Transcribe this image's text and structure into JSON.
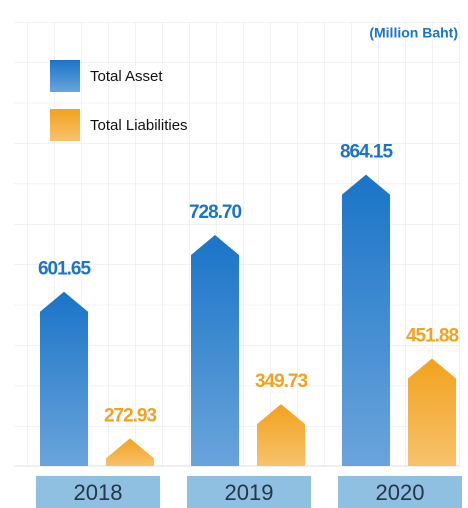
{
  "chart_data": {
    "type": "bar",
    "unit_label": "(Million Baht)",
    "categories": [
      "2018",
      "2019",
      "2020"
    ],
    "series": [
      {
        "name": "Total Asset",
        "color": "#1a74c8",
        "values": [
          601.65,
          728.7,
          864.15
        ],
        "value_labels": [
          "601.65",
          "728.70",
          "864.15"
        ]
      },
      {
        "name": "Total Liabilities",
        "color": "#f2a21e",
        "values": [
          272.93,
          349.73,
          451.88
        ],
        "value_labels": [
          "272.93",
          "349.73",
          "451.88"
        ]
      }
    ],
    "ylim": [
      211,
      1000
    ]
  }
}
